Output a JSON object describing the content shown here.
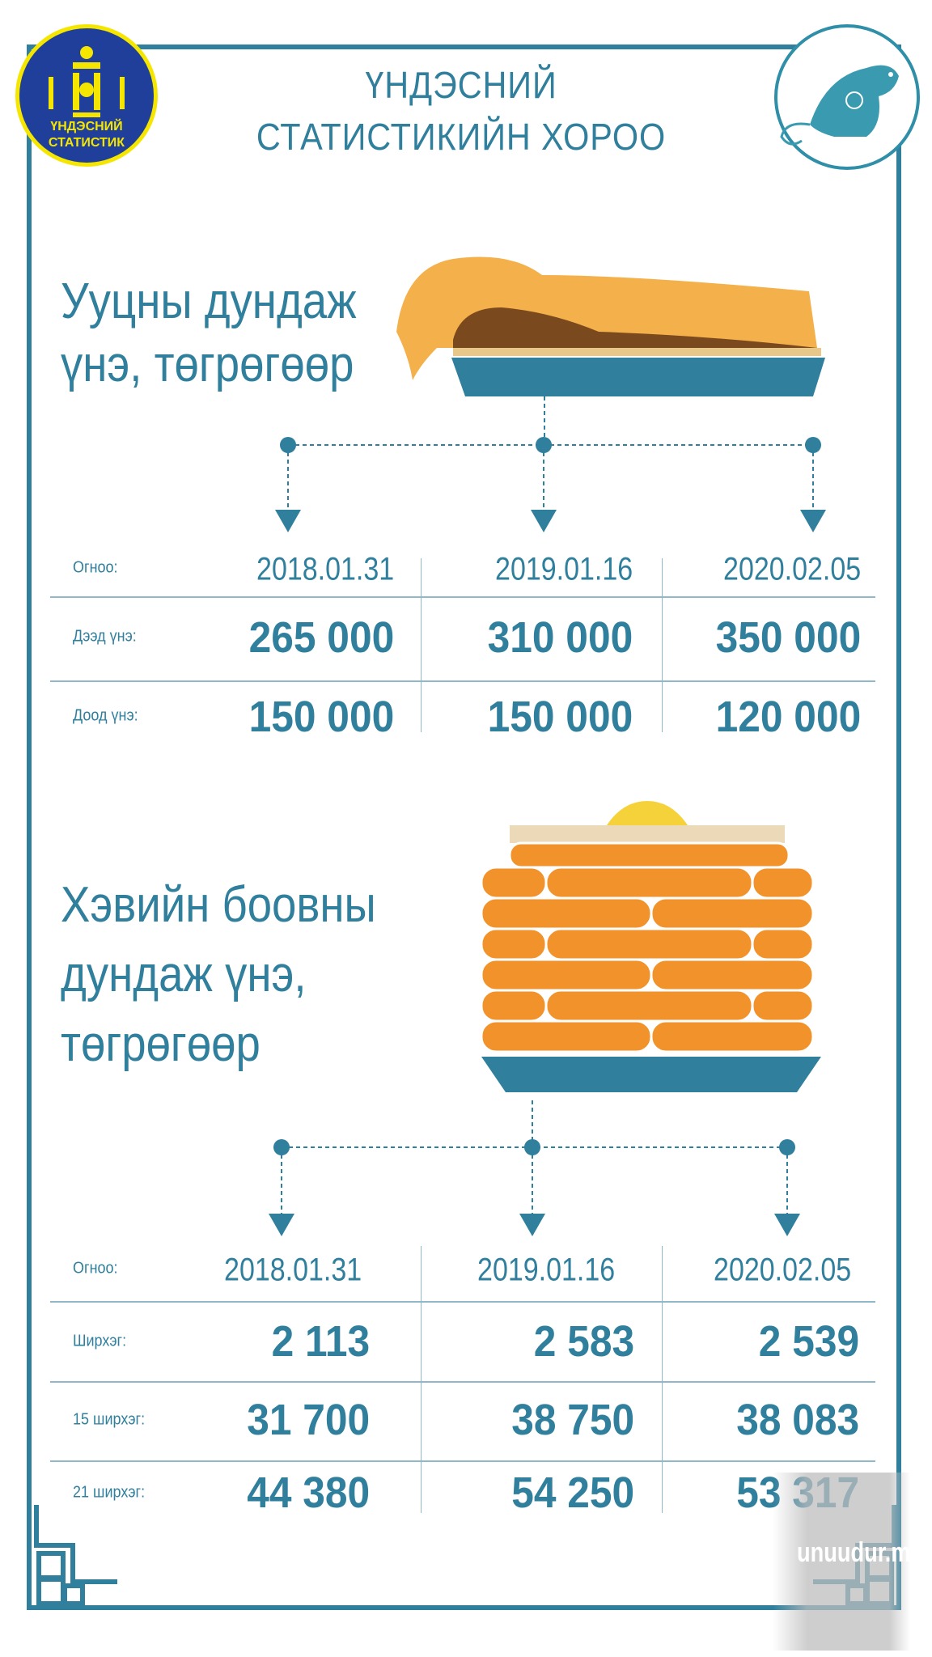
{
  "header": {
    "logo_text": [
      "ҮНДЭСНИЙ",
      "СТАТИСТИК"
    ],
    "title_line1": "ҮНДЭСНИЙ",
    "title_line2": "СТАТИСТИКИЙН ХОРОО",
    "zodiac_icon": "rat-icon"
  },
  "colors": {
    "primary": "#2f7f9d",
    "logo_bg": "#1f3f9a",
    "logo_ring": "#f5e600",
    "pastry": "#f4b04a",
    "bread": "#f2922a"
  },
  "section1": {
    "heading_line1": "Ууцны дундаж",
    "heading_line2": "үнэ, төгрөгөөр",
    "table": {
      "row_labels": [
        "Огноо:",
        "Дээд үнэ:",
        "Доод үнэ:"
      ],
      "dates": [
        "2018.01.31",
        "2019.01.16",
        "2020.02.05"
      ],
      "rows": [
        [
          "265 000",
          "310 000",
          "350 000"
        ],
        [
          "150 000",
          "150 000",
          "120 000"
        ]
      ]
    }
  },
  "section2": {
    "heading_line1": "Хэвийн боовны",
    "heading_line2": "дундаж үнэ,",
    "heading_line3": "төгрөгөөр",
    "table": {
      "row_labels": [
        "Огноо:",
        "Ширхэг:",
        "15 ширхэг:",
        "21 ширхэг:"
      ],
      "dates": [
        "2018.01.31",
        "2019.01.16",
        "2020.02.05"
      ],
      "rows": [
        [
          "2 113",
          "2 583",
          "2 539"
        ],
        [
          "31 700",
          "38 750",
          "38 083"
        ],
        [
          "44 380",
          "54 250",
          "53 317"
        ]
      ]
    }
  },
  "watermark": "unuudur.mn"
}
